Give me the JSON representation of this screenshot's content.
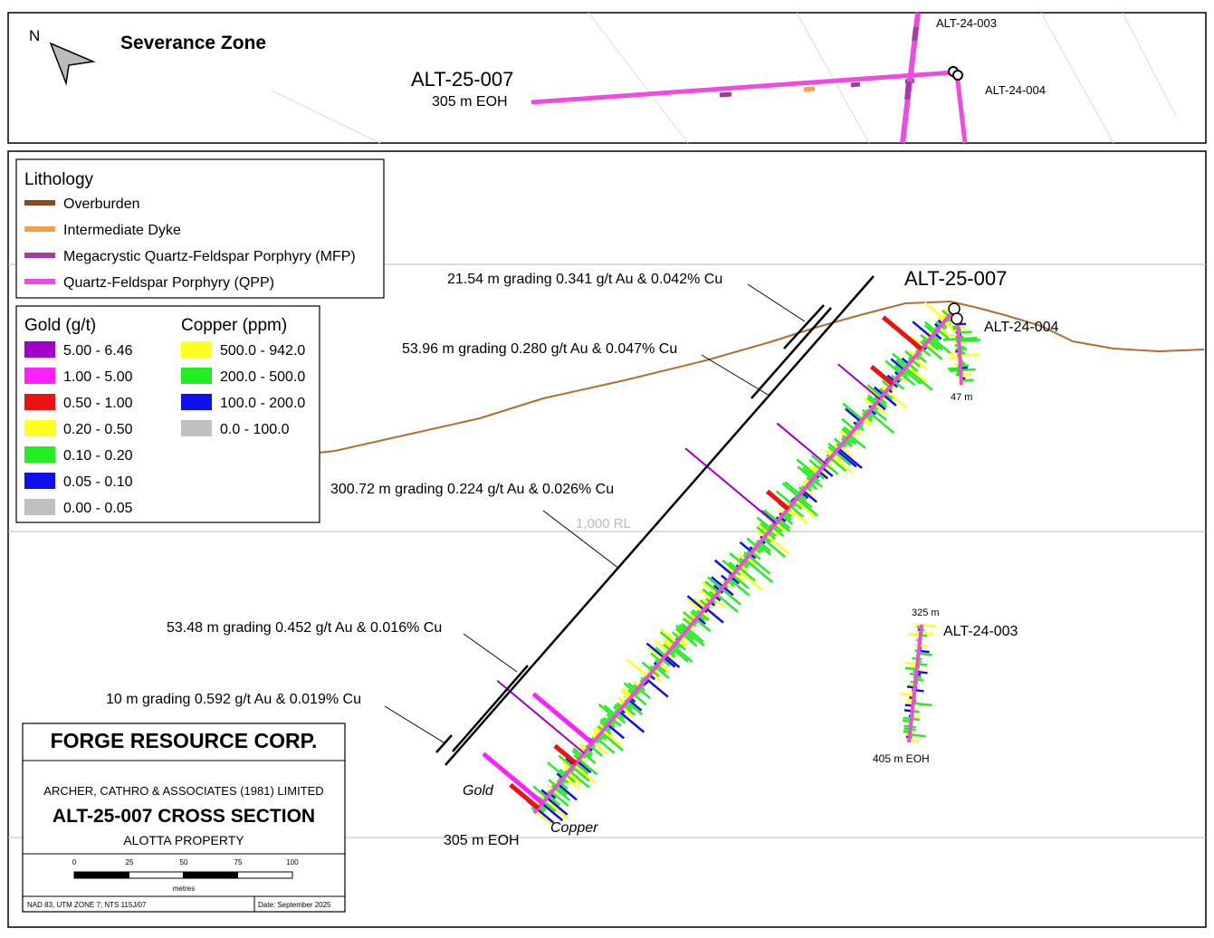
{
  "inset": {
    "title": "Severance Zone",
    "north": "N",
    "hole_main": "ALT-25-007",
    "hole_main_depth": "305 m EOH",
    "hole_003": "ALT-24-003",
    "hole_004": "ALT-24-004"
  },
  "lithology_legend": {
    "title": "Lithology",
    "items": [
      {
        "label": "Overburden",
        "color": "#8b4a1e"
      },
      {
        "label": "Intermediate Dyke",
        "color": "#f5a04a"
      },
      {
        "label": "Megacrystic Quartz-Feldspar Porphyry (MFP)",
        "color": "#a33ca0"
      },
      {
        "label": "Quartz-Feldspar Porphyry (QPP)",
        "color": "#f04be0"
      }
    ]
  },
  "assay_legend": {
    "gold_title": "Gold (g/t)",
    "copper_title": "Copper (ppm)",
    "gold": [
      {
        "label": "5.00 - 6.46",
        "color": "#a000c8"
      },
      {
        "label": "1.00 - 5.00",
        "color": "#ff20ff"
      },
      {
        "label": "0.50 - 1.00",
        "color": "#ee1111"
      },
      {
        "label": "0.20 - 0.50",
        "color": "#ffff22"
      },
      {
        "label": "0.10 - 0.20",
        "color": "#22ee22"
      },
      {
        "label": "0.05 - 0.10",
        "color": "#1010ee"
      },
      {
        "label": "0.00 - 0.05",
        "color": "#c0c0c0"
      }
    ],
    "copper": [
      {
        "label": "500.0 - 942.0",
        "color": "#ffff22"
      },
      {
        "label": "200.0 - 500.0",
        "color": "#22ee22"
      },
      {
        "label": "100.0 - 200.0",
        "color": "#1010ee"
      },
      {
        "label": "0.0 - 100.0",
        "color": "#c0c0c0"
      }
    ]
  },
  "section": {
    "hole_main": "ALT-25-007",
    "hole_004": "ALT-24-004",
    "hole_004_depth": "47 m",
    "hole_003": "ALT-24-003",
    "hole_003_top": "325 m",
    "hole_003_depth": "405 m EOH",
    "main_eoh": "305 m EOH",
    "gold_label": "Gold",
    "copper_label": "Copper",
    "rl_label": "1,000 RL",
    "intercepts": [
      "21.54 m grading 0.341 g/t Au & 0.042% Cu",
      "53.96 m grading 0.280 g/t Au & 0.047% Cu",
      "300.72 m grading 0.224 g/t Au & 0.026% Cu",
      "53.48 m grading 0.452 g/t Au & 0.016% Cu",
      "10 m grading 0.592 g/t Au & 0.019% Cu"
    ]
  },
  "title_block": {
    "company": "FORGE RESOURCE CORP.",
    "consultant": "ARCHER, CATHRO & ASSOCIATES (1981) LIMITED",
    "title": "ALT-25-007 CROSS SECTION",
    "property": "ALOTTA PROPERTY",
    "scale_ticks": [
      "0",
      "25",
      "50",
      "75",
      "100"
    ],
    "scale_unit": "metres",
    "datum": "NAD 83, UTM ZONE 7; NTS 115J/07",
    "date": "Date: September 2025"
  }
}
